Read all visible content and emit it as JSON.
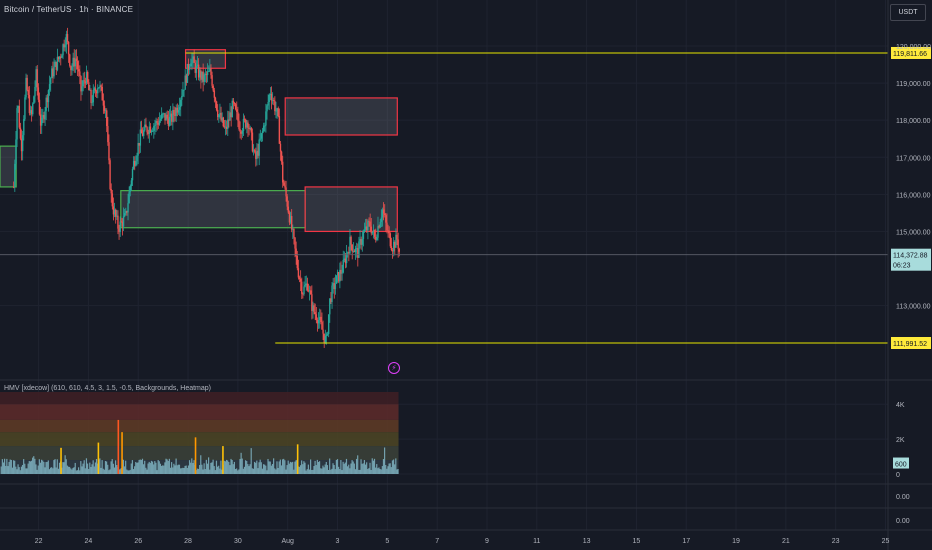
{
  "header": {
    "symbol_line": "Bitcoin / TetherUS · 1h · BINANCE",
    "currency": "USDT"
  },
  "indicator": {
    "label": "HMV [xdecow] (610, 610, 4.5, 3, 1.5, -0.5, Backgrounds, Heatmap)"
  },
  "icons": {
    "alert": "lightning-bolt-icon"
  },
  "colors": {
    "background": "#161a25",
    "grid": "#1f2330",
    "bull": "#26a69a",
    "bear": "#ef5350",
    "level_line": "#e6e600",
    "price_line": "#5d606b",
    "price_badge": "#a8dcdc",
    "level_badge": "#ffeb3b"
  },
  "chart_data": [
    {
      "type": "candlestick",
      "title": "",
      "x_ticks": [
        "22",
        "24",
        "26",
        "28",
        "30",
        "Aug",
        "3",
        "5",
        "7",
        "9",
        "11",
        "13",
        "15",
        "17",
        "19",
        "21",
        "23",
        "25"
      ],
      "y_ticks": [
        "120,000.00",
        "119,000.00",
        "118,000.00",
        "117,000.00",
        "116,000.00",
        "115,000.00",
        "113,000.00"
      ],
      "ylim": [
        111700,
        120500
      ],
      "path": [
        [
          21.0,
          116200
        ],
        [
          21.15,
          118600
        ],
        [
          21.3,
          117200
        ],
        [
          21.5,
          119000
        ],
        [
          21.7,
          118000
        ],
        [
          21.9,
          119200
        ],
        [
          22.1,
          117800
        ],
        [
          22.3,
          118500
        ],
        [
          22.5,
          119200
        ],
        [
          22.7,
          119500
        ],
        [
          22.9,
          119800
        ],
        [
          23.1,
          120300
        ],
        [
          23.3,
          119400
        ],
        [
          23.5,
          119700
        ],
        [
          23.7,
          118800
        ],
        [
          23.9,
          119200
        ],
        [
          24.1,
          118500
        ],
        [
          24.4,
          119000
        ],
        [
          24.7,
          118300
        ],
        [
          24.8,
          117000
        ],
        [
          24.9,
          116000
        ],
        [
          25.0,
          115600
        ],
        [
          25.2,
          115100
        ],
        [
          25.5,
          115400
        ],
        [
          25.8,
          116800
        ],
        [
          26.1,
          117600
        ],
        [
          26.4,
          117800
        ],
        [
          26.7,
          117900
        ],
        [
          27.0,
          118100
        ],
        [
          27.3,
          118000
        ],
        [
          27.6,
          118400
        ],
        [
          27.9,
          119100
        ],
        [
          28.1,
          119700
        ],
        [
          28.3,
          119400
        ],
        [
          28.6,
          119100
        ],
        [
          28.9,
          119300
        ],
        [
          29.2,
          118200
        ],
        [
          29.5,
          117700
        ],
        [
          29.8,
          118400
        ],
        [
          30.1,
          117800
        ],
        [
          30.4,
          118000
        ],
        [
          30.7,
          116900
        ],
        [
          31.0,
          117700
        ],
        [
          31.3,
          118800
        ],
        [
          31.6,
          118100
        ],
        [
          31.8,
          116400
        ],
        [
          32.0,
          115700
        ],
        [
          32.2,
          114900
        ],
        [
          32.4,
          114000
        ],
        [
          32.6,
          113400
        ],
        [
          32.8,
          113600
        ],
        [
          33.0,
          112900
        ],
        [
          33.2,
          112700
        ],
        [
          33.4,
          112300
        ],
        [
          33.55,
          112000
        ],
        [
          33.7,
          113200
        ],
        [
          33.9,
          113600
        ],
        [
          34.2,
          114000
        ],
        [
          34.5,
          114700
        ],
        [
          34.8,
          114400
        ],
        [
          35.0,
          114900
        ],
        [
          35.3,
          115200
        ],
        [
          35.5,
          114800
        ],
        [
          35.8,
          115600
        ],
        [
          36.0,
          115000
        ],
        [
          36.2,
          114600
        ],
        [
          36.4,
          114800
        ],
        [
          36.5,
          114372
        ]
      ],
      "horizontal_levels": [
        {
          "price": 119811.66,
          "label": "119,811.66",
          "from_day": 27.9
        },
        {
          "price": 111991.52,
          "label": "111,991.52",
          "from_day": 31.5
        }
      ],
      "last_price": {
        "price": 114372.88,
        "label": "114,372.88",
        "countdown": "06:23"
      },
      "zones": [
        {
          "kind": "demand",
          "from_day": 20.0,
          "to_day": 21.1,
          "top": 117300,
          "bottom": 116200
        },
        {
          "kind": "demand",
          "from_day": 25.3,
          "to_day": 32.7,
          "top": 116100,
          "bottom": 115100
        },
        {
          "kind": "supply",
          "from_day": 27.9,
          "to_day": 29.5,
          "top": 119900,
          "bottom": 119400
        },
        {
          "kind": "supply",
          "from_day": 31.9,
          "to_day": 36.4,
          "top": 118600,
          "bottom": 117600
        },
        {
          "kind": "supply",
          "from_day": 32.7,
          "to_day": 36.4,
          "top": 116200,
          "bottom": 115000
        }
      ]
    },
    {
      "type": "bar",
      "title": "HMV [xdecow] (610, 610, 4.5, 3, 1.5, -0.5, Backgrounds, Heatmap)",
      "y_ticks": [
        "4K",
        "2K",
        "0"
      ],
      "ylim": [
        0,
        4700
      ],
      "last_value": "600",
      "spikes": [
        {
          "day": 25.2,
          "value": 3100
        },
        {
          "day": 25.35,
          "value": 2400
        },
        {
          "day": 24.4,
          "value": 1800
        },
        {
          "day": 28.3,
          "value": 2100
        },
        {
          "day": 29.4,
          "value": 1600
        },
        {
          "day": 32.4,
          "value": 1700
        },
        {
          "day": 22.9,
          "value": 1500
        }
      ]
    },
    {
      "type": "line",
      "y_ticks": [
        "0.00"
      ]
    },
    {
      "type": "line",
      "y_ticks": [
        "0.00"
      ]
    }
  ]
}
